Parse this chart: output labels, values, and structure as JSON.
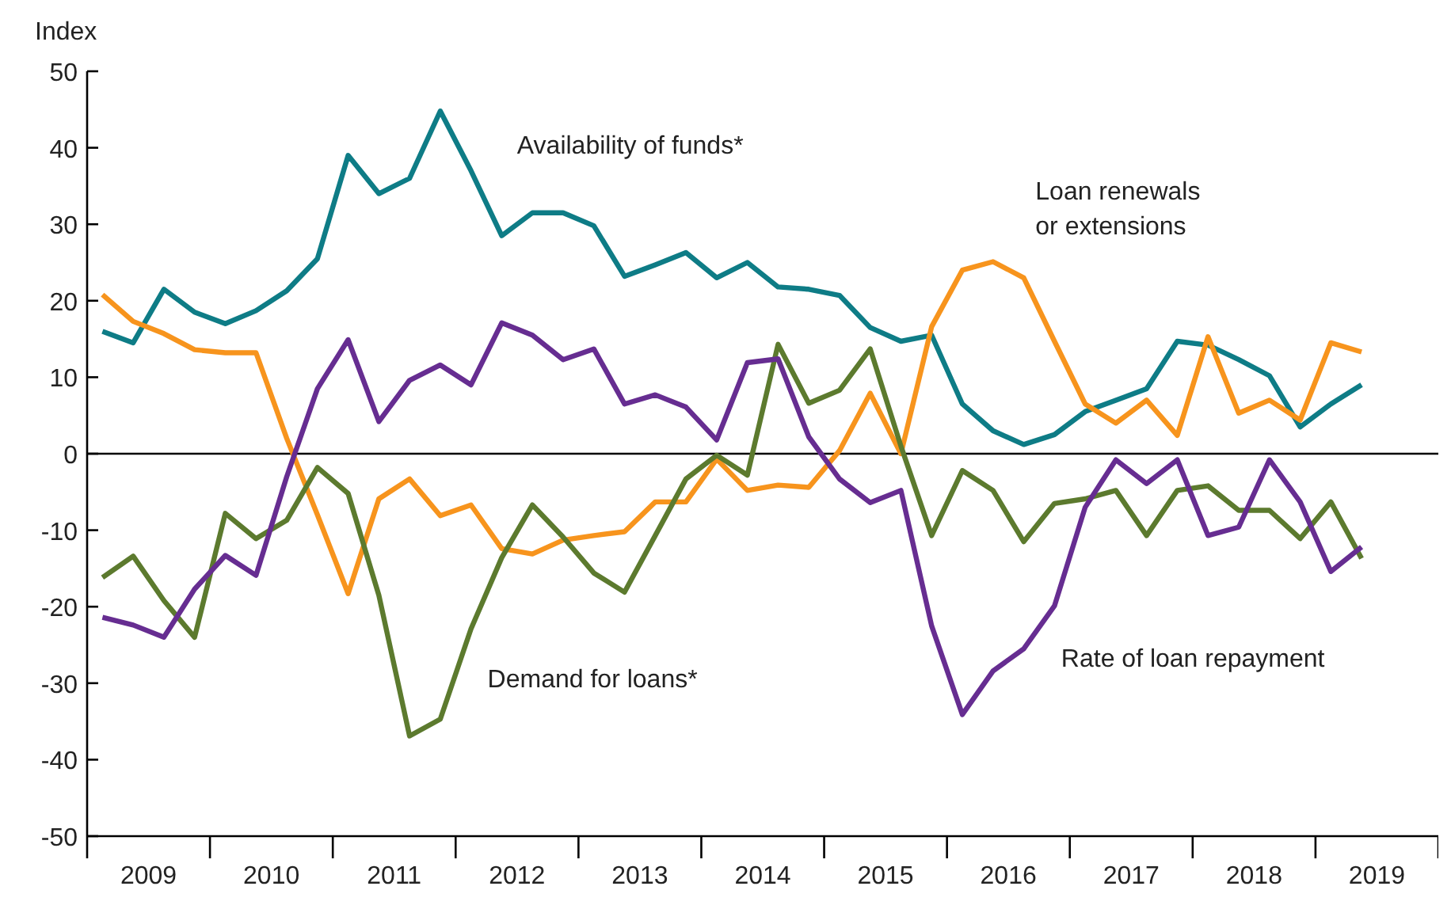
{
  "chart_data": {
    "type": "line",
    "ylabel": "Index",
    "x": [
      2009.125,
      2009.375,
      2009.625,
      2009.875,
      2010.125,
      2010.375,
      2010.625,
      2010.875,
      2011.125,
      2011.375,
      2011.625,
      2011.875,
      2012.125,
      2012.375,
      2012.625,
      2012.875,
      2013.125,
      2013.375,
      2013.625,
      2013.875,
      2014.125,
      2014.375,
      2014.625,
      2014.875,
      2015.125,
      2015.375,
      2015.625,
      2015.875,
      2016.125,
      2016.375,
      2016.625,
      2016.875,
      2017.125,
      2017.375,
      2017.625,
      2017.875,
      2018.125,
      2018.375,
      2018.625,
      2018.875,
      2019.125,
      2019.375
    ],
    "series": [
      {
        "name": "Availability of funds*",
        "color": "#0e7c86",
        "values": [
          16,
          14.5,
          21.5,
          18.5,
          17,
          18.7,
          21.3,
          25.5,
          39,
          34,
          36,
          44.8,
          37,
          28.5,
          31.5,
          31.5,
          29.8,
          23.2,
          24.7,
          26.3,
          23,
          25,
          21.8,
          21.5,
          20.7,
          16.5,
          14.7,
          15.5,
          6.5,
          3,
          1.2,
          2.5,
          5.5,
          7,
          8.5,
          14.7,
          14.2,
          12.3,
          10.2,
          3.5,
          6.5,
          9
        ]
      },
      {
        "name": "Loan renewals or extensions",
        "color": "#f7941d",
        "values": [
          20.8,
          17.3,
          15.7,
          13.6,
          13.2,
          13.2,
          2,
          -8,
          -18.3,
          -5.9,
          -3.3,
          -8.1,
          -6.7,
          -12.4,
          -13.1,
          -11.3,
          -10.7,
          -10.2,
          -6.3,
          -6.3,
          -0.7,
          -4.8,
          -4.1,
          -4.4,
          0.4,
          7.9,
          0,
          16.6,
          24,
          25.1,
          23,
          14.7,
          6.5,
          4,
          7,
          2.4,
          15.3,
          5.3,
          7,
          4.4,
          14.5,
          13.3
        ]
      },
      {
        "name": "Demand for loans*",
        "color": "#5c7a2e",
        "values": [
          -16.2,
          -13.4,
          -19.2,
          -24,
          -7.8,
          -11.1,
          -8.7,
          -1.8,
          -5.2,
          -18.5,
          -36.9,
          -34.7,
          -22.9,
          -13.6,
          -6.7,
          -10.9,
          -15.6,
          -18.1,
          -10.7,
          -3.3,
          -0.2,
          -2.8,
          14.3,
          6.6,
          8.3,
          13.7,
          1,
          -10.7,
          -2.2,
          -4.8,
          -11.5,
          -6.5,
          -5.9,
          -4.8,
          -10.7,
          -4.8,
          -4.2,
          -7.4,
          -7.4,
          -11.1,
          -6.3,
          -13.7
        ]
      },
      {
        "name": "Rate of loan repayment",
        "color": "#662d91",
        "values": [
          -21.4,
          -22.4,
          -24,
          -17.7,
          -13.3,
          -15.9,
          -3,
          8.5,
          14.9,
          4.2,
          9.6,
          11.6,
          9,
          17.1,
          15.5,
          12.3,
          13.7,
          6.5,
          7.7,
          6.1,
          1.8,
          11.9,
          12.4,
          2.2,
          -3.3,
          -6.4,
          -4.8,
          -22.5,
          -34.1,
          -28.4,
          -25.5,
          -19.9,
          -7,
          -0.8,
          -3.9,
          -0.8,
          -10.7,
          -9.6,
          -0.8,
          -6.3,
          -15.4,
          -12.2
        ]
      }
    ],
    "xlim": [
      2009,
      2020
    ],
    "xticks": [
      {
        "value": 2009,
        "label": null
      },
      {
        "value": 2009.5,
        "label": "2009"
      },
      {
        "value": 2010,
        "label": null
      },
      {
        "value": 2010.5,
        "label": "2010"
      },
      {
        "value": 2011,
        "label": null
      },
      {
        "value": 2011.5,
        "label": "2011"
      },
      {
        "value": 2012,
        "label": null
      },
      {
        "value": 2012.5,
        "label": "2012"
      },
      {
        "value": 2013,
        "label": null
      },
      {
        "value": 2013.5,
        "label": "2013"
      },
      {
        "value": 2014,
        "label": null
      },
      {
        "value": 2014.5,
        "label": "2014"
      },
      {
        "value": 2015,
        "label": null
      },
      {
        "value": 2015.5,
        "label": "2015"
      },
      {
        "value": 2016,
        "label": null
      },
      {
        "value": 2016.5,
        "label": "2016"
      },
      {
        "value": 2017,
        "label": null
      },
      {
        "value": 2017.5,
        "label": "2017"
      },
      {
        "value": 2018,
        "label": null
      },
      {
        "value": 2018.5,
        "label": "2018"
      },
      {
        "value": 2019,
        "label": null
      },
      {
        "value": 2019.5,
        "label": "2019"
      },
      {
        "value": 2020,
        "label": null
      }
    ],
    "ylim": [
      -50,
      50
    ],
    "yticks": [
      -50,
      -40,
      -30,
      -20,
      -10,
      0,
      10,
      20,
      30,
      40,
      50
    ],
    "ref_lines": [
      {
        "axis": "y",
        "value": 0,
        "color": "#000000"
      }
    ],
    "grid": false,
    "legend": false,
    "marker": "none",
    "line_style": "solid"
  }
}
